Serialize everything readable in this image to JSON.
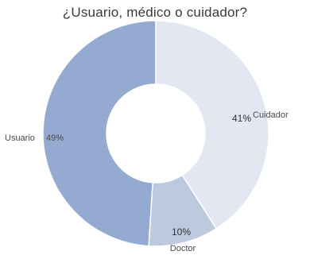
{
  "chart_data": {
    "type": "pie",
    "title": "¿Usuario, médico o cuidador?",
    "donut": true,
    "slices": [
      {
        "label": "Cuidador",
        "value": 41,
        "value_label": "41%",
        "color": "#e2e7f1"
      },
      {
        "label": "Doctor",
        "value": 10,
        "value_label": "10%",
        "color": "#bcc9df"
      },
      {
        "label": "Usuario",
        "value": 49,
        "value_label": "49%",
        "color": "#95aad0"
      }
    ]
  }
}
